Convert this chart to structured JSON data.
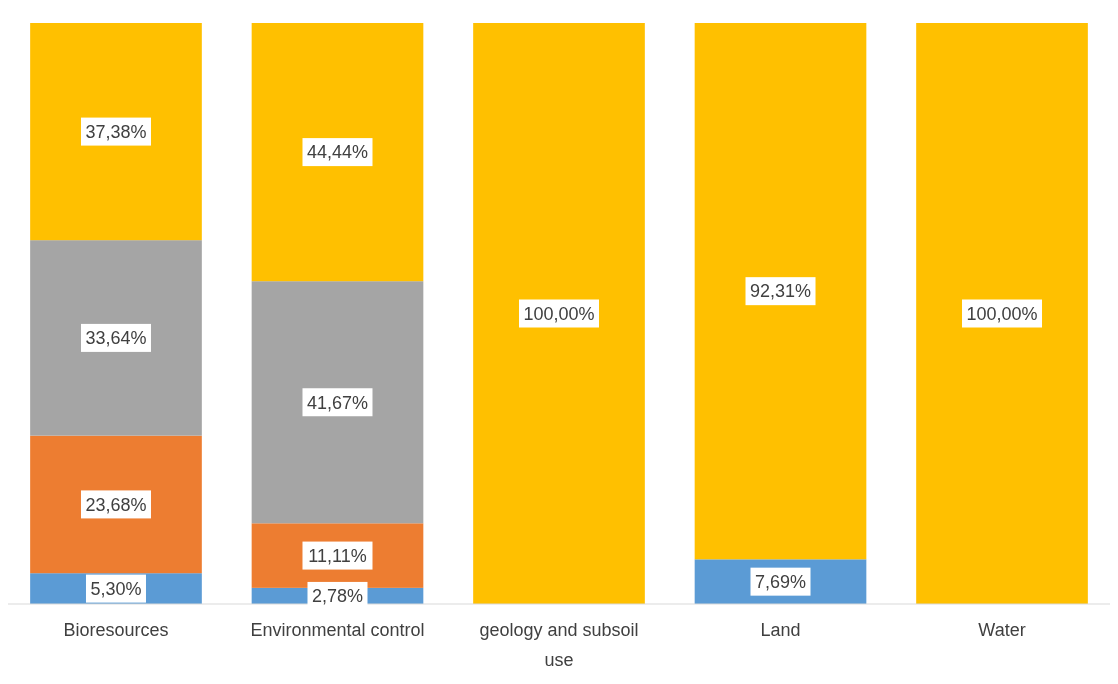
{
  "chart_data": {
    "type": "bar",
    "stacked": true,
    "categories": [
      "Bioresources",
      "Environmental control",
      "geology and subsoil use",
      "Land",
      "Water"
    ],
    "ylim": [
      0,
      100
    ],
    "tick_labels": "x",
    "series": [
      {
        "color": "#5b9bd5",
        "values": [
          5.3,
          2.78,
          0,
          7.69,
          0
        ],
        "value_labels": [
          "5,30%",
          "2,78%",
          null,
          "7,69%",
          null
        ]
      },
      {
        "color": "#ed7d31",
        "values": [
          23.68,
          11.11,
          0,
          0,
          0
        ],
        "value_labels": [
          "23,68%",
          "11,11%",
          null,
          null,
          null
        ]
      },
      {
        "color": "#a5a5a5",
        "values": [
          33.64,
          41.67,
          0,
          0,
          0
        ],
        "value_labels": [
          "33,64%",
          "41,67%",
          null,
          null,
          null
        ]
      },
      {
        "color": "#ffc000",
        "values": [
          37.38,
          44.44,
          100,
          92.31,
          100
        ],
        "value_labels": [
          "37,38%",
          "44,44%",
          "100,00%",
          "92,31%",
          "100,00%"
        ]
      }
    ]
  }
}
